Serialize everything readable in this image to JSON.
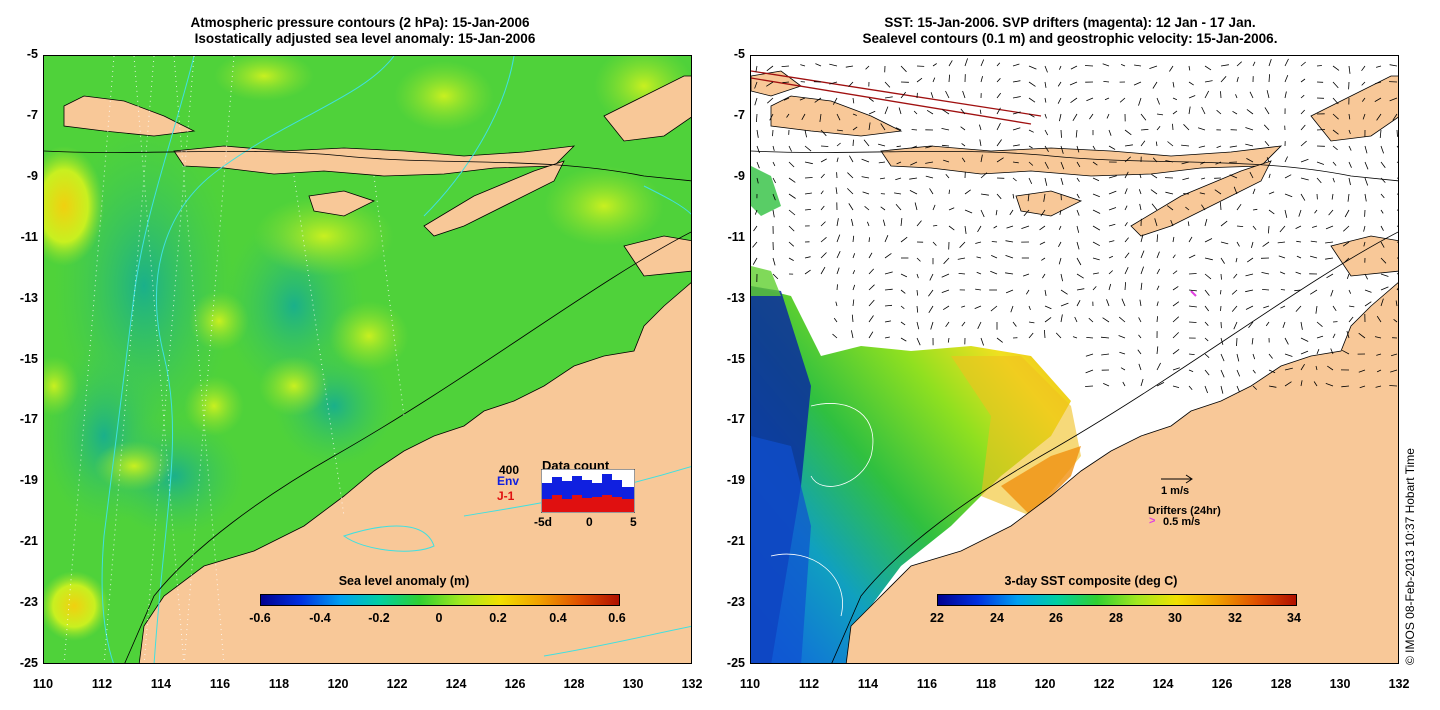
{
  "left_panel": {
    "title_line1": "Atmospheric pressure contours (2 hPa): 15-Jan-2006",
    "title_line2": "Isostatically adjusted sea level anomaly: 15-Jan-2006",
    "colorbar_title": "Sea level anomaly (m)",
    "colorbar_ticks": [
      "-0.6",
      "-0.4",
      "-0.2",
      "0",
      "0.2",
      "0.4",
      "0.6"
    ],
    "data_count": {
      "title": "Data count",
      "scale_label": "400",
      "env_label": "Env",
      "j1_label": "J-1",
      "axis_labels": [
        "-5d",
        "0",
        "5"
      ],
      "env_color": "#1020e0",
      "j1_color": "#e01010"
    }
  },
  "right_panel": {
    "title_line1": "SST: 15-Jan-2006. SVP drifters (magenta): 12 Jan - 17 Jan.",
    "title_line2": "Sealevel contours (0.1 m) and geostrophic velocity: 15-Jan-2006.",
    "colorbar_title": "3-day SST composite (deg C)",
    "colorbar_ticks": [
      "22",
      "24",
      "26",
      "28",
      "30",
      "32",
      "34"
    ],
    "velocity_scale_label": "1 m/s",
    "drifters_label": "Drifters (24hr)",
    "drifter_speed_label": "0.5 m/s",
    "drifter_color": "#e040e0"
  },
  "axes": {
    "y_ticks": [
      "-5",
      "-7",
      "-9",
      "-11",
      "-13",
      "-15",
      "-17",
      "-19",
      "-21",
      "-23",
      "-25"
    ],
    "x_ticks": [
      "110",
      "112",
      "114",
      "116",
      "118",
      "120",
      "122",
      "124",
      "126",
      "128",
      "130",
      "132"
    ]
  },
  "colors": {
    "land": "#f8c898",
    "ocean_sla_base": "#4fd23a",
    "contour": "#40e0e0"
  },
  "credit": "© IMOS 08-Feb-2013 10:37 Hobart Time"
}
